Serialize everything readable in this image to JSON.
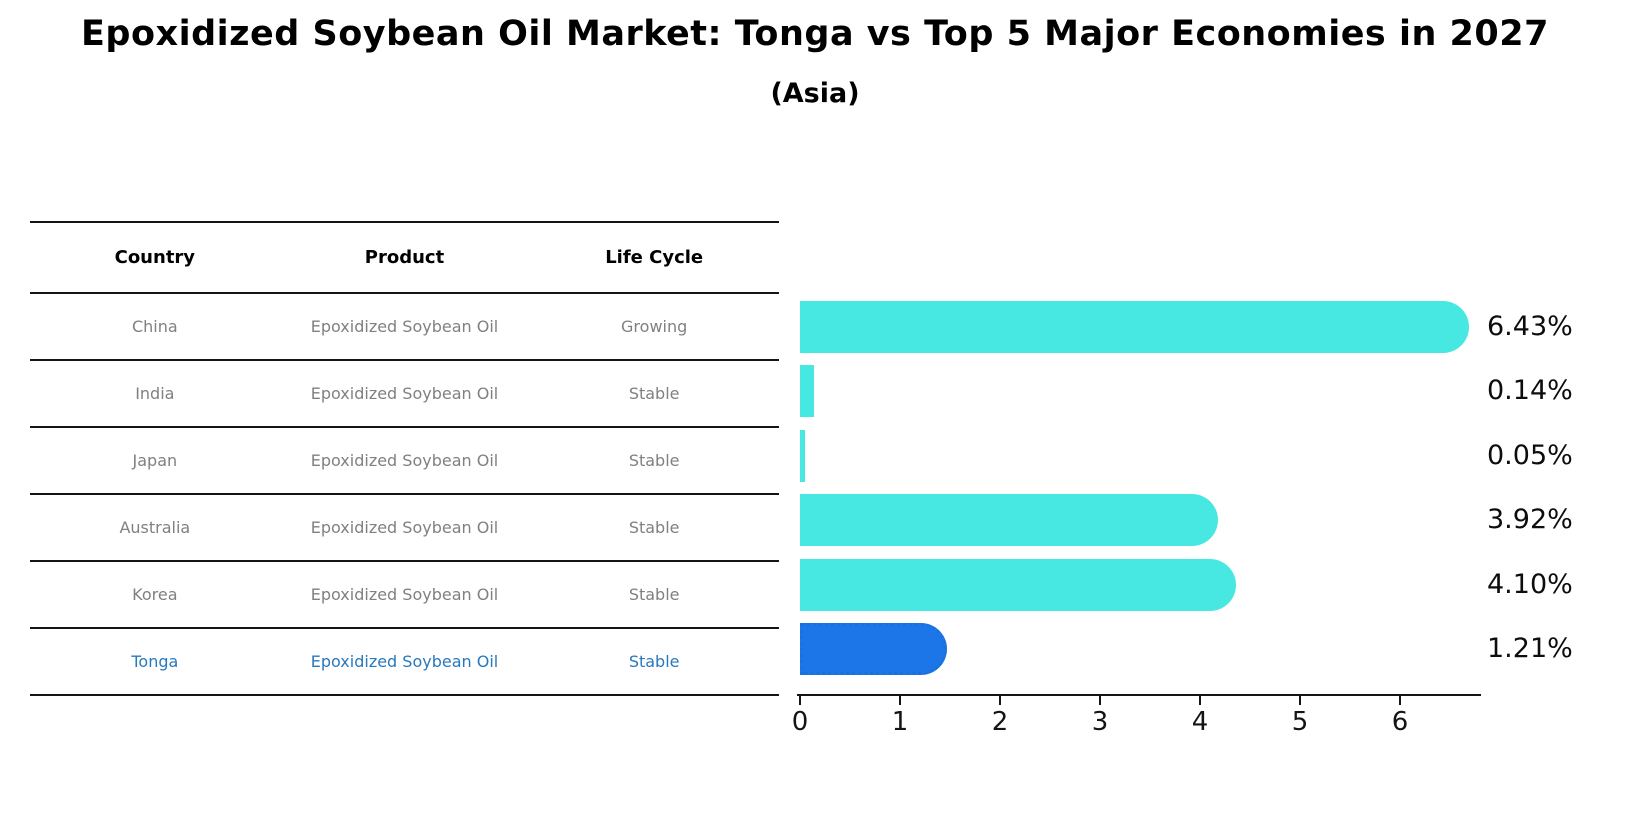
{
  "title": "Epoxidized Soybean Oil Market: Tonga vs Top 5 Major Economies in 2027",
  "subtitle": "(Asia)",
  "table": {
    "headers": [
      "Country",
      "Product",
      "Life Cycle"
    ],
    "rows": [
      {
        "country": "China",
        "product": "Epoxidized Soybean Oil",
        "life_cycle": "Growing",
        "highlight": false
      },
      {
        "country": "India",
        "product": "Epoxidized Soybean Oil",
        "life_cycle": "Stable",
        "highlight": false
      },
      {
        "country": "Japan",
        "product": "Epoxidized Soybean Oil",
        "life_cycle": "Stable",
        "highlight": false
      },
      {
        "country": "Australia",
        "product": "Epoxidized Soybean Oil",
        "life_cycle": "Stable",
        "highlight": false
      },
      {
        "country": "Korea",
        "product": "Epoxidized Soybean Oil",
        "life_cycle": "Stable",
        "highlight": false
      },
      {
        "country": "Tonga",
        "product": "Epoxidized Soybean Oil",
        "life_cycle": "Stable",
        "highlight": true
      }
    ]
  },
  "chart_data": {
    "type": "bar",
    "orientation": "horizontal",
    "categories": [
      "China",
      "India",
      "Japan",
      "Australia",
      "Korea",
      "Tonga"
    ],
    "values": [
      6.43,
      0.14,
      0.05,
      3.92,
      4.1,
      1.21
    ],
    "value_labels": [
      "6.43%",
      "0.14%",
      "0.05%",
      "3.92%",
      "4.10%",
      "1.21%"
    ],
    "highlight_index": 5,
    "xlim": [
      0,
      6.8
    ],
    "x_ticks": [
      "0",
      "1",
      "2",
      "3",
      "4",
      "5",
      "6"
    ],
    "grid": false,
    "legend": "none",
    "bar_color": "#46E8E1",
    "highlight_fill": "#1C76E8",
    "highlight_border": "#1B6FDE"
  },
  "colors": {
    "title_text": "#000000",
    "table_header_text": "#000000",
    "table_row_text": "#808080",
    "highlight_row_text": "#2878BE",
    "axis_line": "#141414",
    "value_label_text": "#0d0d0d"
  }
}
